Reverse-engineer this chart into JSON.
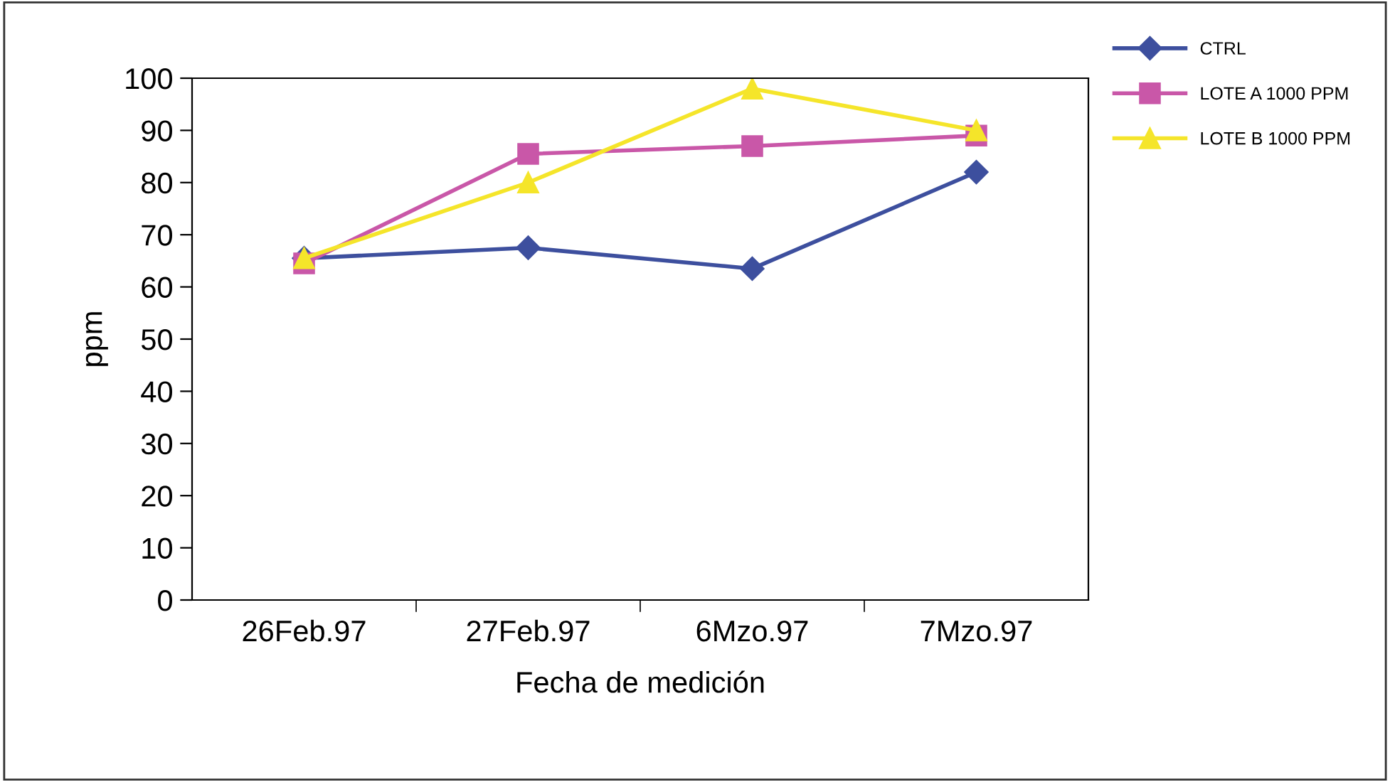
{
  "chart_data": {
    "type": "line",
    "xlabel": "Fecha de medición",
    "ylabel": "ppm",
    "categories": [
      "26Feb.97",
      "27Feb.97",
      "6Mzo.97",
      "7Mzo.97"
    ],
    "series": [
      {
        "name": "CTRL",
        "color": "#3d4f9e",
        "values": [
          65.5,
          67.5,
          63.5,
          82
        ],
        "marker": "diamond"
      },
      {
        "name": "LOTE A 1000 PPM",
        "color": "#c957a8",
        "values": [
          64.5,
          85.5,
          87,
          89
        ],
        "marker": "square"
      },
      {
        "name": "LOTE B 1000 PPM",
        "color": "#f5e52a",
        "values": [
          65.5,
          80,
          98,
          90
        ],
        "marker": "triangle"
      }
    ],
    "ylim": [
      0,
      100
    ],
    "yticks": [
      0,
      10,
      20,
      30,
      40,
      50,
      60,
      70,
      80,
      90,
      100
    ],
    "grid": false,
    "legend": "top right",
    "line_style": "solid"
  }
}
